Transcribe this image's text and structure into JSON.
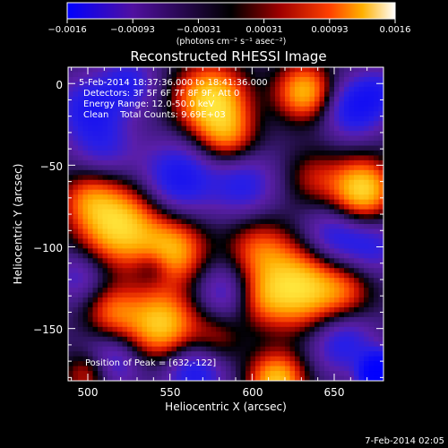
{
  "colorbar": {
    "tick_labels": [
      "−0.0016",
      "−0.00093",
      "−0.00031",
      "0.00031",
      "0.00093",
      "0.0016"
    ],
    "range": [
      -0.0016,
      0.0016
    ],
    "unit_label": "(photons cm⁻² s⁻¹ asec⁻²)",
    "colors": [
      "#0000ff",
      "#5010a0",
      "#000000",
      "#a00000",
      "#ff4000",
      "#ffb000",
      "#ffffff"
    ]
  },
  "chart_data": {
    "type": "heatmap",
    "title": "Reconstructed RHESSI Image",
    "xlabel": "Heliocentric X (arcsec)",
    "ylabel": "Heliocentric Y (arcsec)",
    "xlim": [
      488,
      680
    ],
    "ylim": [
      -182,
      10
    ],
    "x_ticks": [
      500,
      550,
      600,
      650
    ],
    "x_tick_labels": [
      "500",
      "550",
      "600",
      "650"
    ],
    "y_ticks": [
      0,
      -50,
      -100,
      -150
    ],
    "y_tick_labels": [
      "0",
      "−50",
      "−100",
      "−150"
    ],
    "annotations": [
      " 5-Feb-2014 18:37:36.000 to 18:41:36.000",
      "Detectors: 3F 5F 6F 7F 8F 9F, Att 0",
      "Energy Range: 12.0-50.0 keV",
      "Clean    Total Counts: 9.69E+03"
    ],
    "peak_label": "Position of Peak = [632,-122]",
    "peak_position": [
      632,
      -122
    ]
  },
  "footer_date": "7-Feb-2014 02:05"
}
